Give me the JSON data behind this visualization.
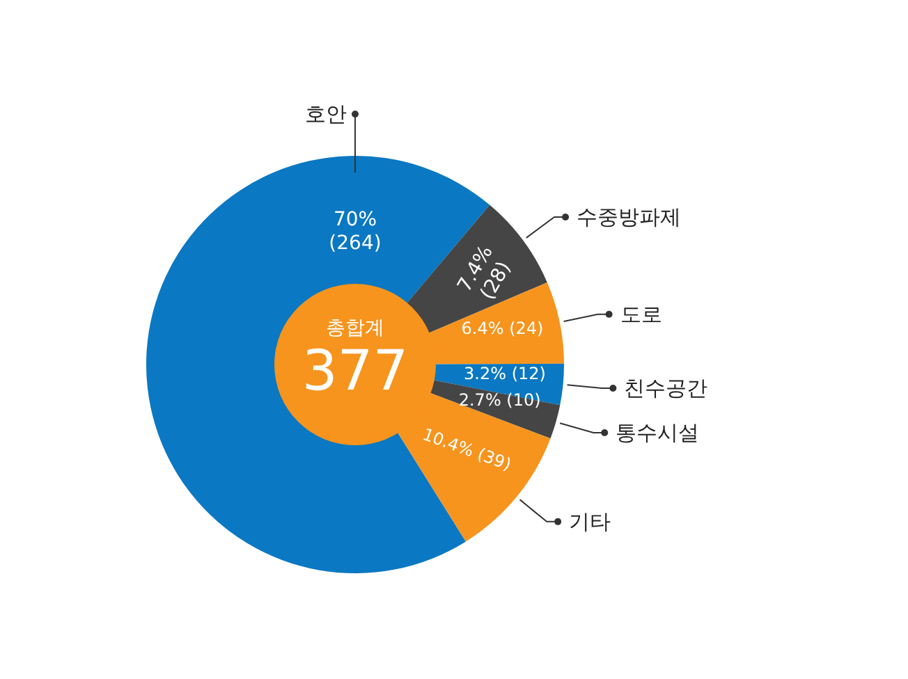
{
  "chart_data": {
    "type": "donut",
    "categories": [
      "호안",
      "수중방파제",
      "도로",
      "친수공간",
      "통수시설",
      "기타"
    ],
    "values": [
      264,
      28,
      24,
      12,
      10,
      39
    ],
    "colors": [
      "#0a78c2",
      "#454545",
      "#f7941d",
      "#0a78c2",
      "#454545",
      "#f7941d"
    ],
    "value_labels": [
      "70%\n(264)",
      "7.4%\n(28)",
      "6.4% (24)",
      "3.2% (12)",
      "2.7% (10)",
      "10.4% (39)"
    ],
    "annotations": [
      "총합계",
      "377"
    ]
  }
}
